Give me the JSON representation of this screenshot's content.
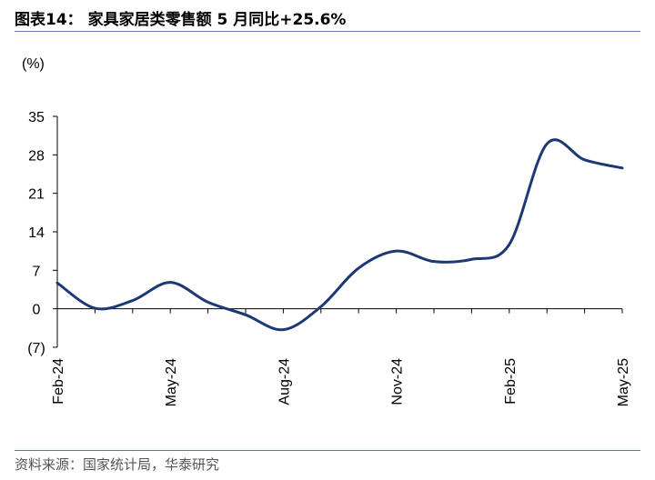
{
  "header": {
    "title": "图表14：  家具家居类零售额 5 月同比+25.6%"
  },
  "footer": {
    "source": "资料来源：国家统计局，华泰研究"
  },
  "chart_data": {
    "type": "line",
    "unit_label": "(%)",
    "xlabel": "",
    "ylabel": "",
    "ylim": [
      -7,
      35
    ],
    "yticks": [
      35,
      28,
      21,
      14,
      7,
      0,
      -7
    ],
    "ytick_labels": [
      "35",
      "28",
      "21",
      "14",
      "7",
      "0",
      "(7)"
    ],
    "x": [
      "2024-02",
      "2024-03",
      "2024-04",
      "2024-05",
      "2024-06",
      "2024-07",
      "2024-08",
      "2024-09",
      "2024-10",
      "2024-11",
      "2024-12",
      "2025-01",
      "2025-02",
      "2025-03",
      "2025-04",
      "2025-05"
    ],
    "xtick_labels": [
      "Feb-24",
      "May-24",
      "Aug-24",
      "Nov-24",
      "Feb-25",
      "May-25"
    ],
    "xtick_values": [
      "2024-02",
      "2024-05",
      "2024-08",
      "2024-11",
      "2025-02",
      "2025-05"
    ],
    "series": [
      {
        "values": [
          4.7,
          0.1,
          1.5,
          4.8,
          1.2,
          -1.1,
          -3.8,
          0.4,
          7.4,
          10.5,
          8.6,
          9.0,
          11.7,
          30.0,
          27.1,
          25.6
        ],
        "color": "#1b3a75"
      }
    ],
    "grid": false,
    "legend": "none"
  }
}
